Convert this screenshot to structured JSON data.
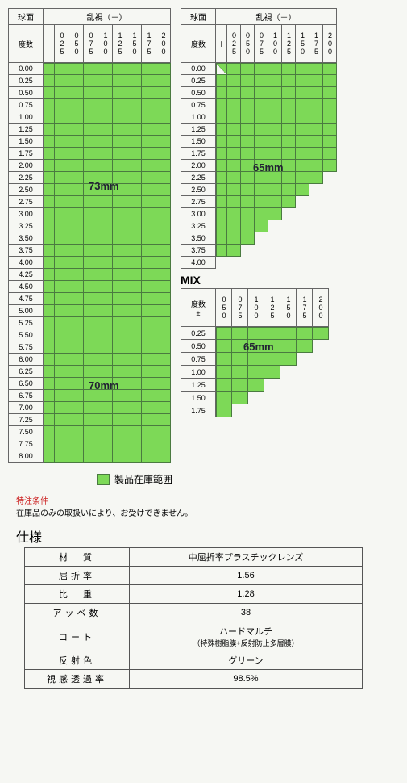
{
  "color": {
    "filled": "#7dd957",
    "grid_line": "#4a7a40",
    "border": "#666666",
    "bg": "#f6f7f3",
    "redline": "#d00000"
  },
  "cyl_headers": [
    "025",
    "050",
    "075",
    "100",
    "125",
    "150",
    "175",
    "200"
  ],
  "chart_minus": {
    "sphere_label": "球面",
    "cyl_label": "乱視（－）",
    "degree_label": "度数",
    "sign": "－",
    "rows": [
      "0.00",
      "0.25",
      "0.50",
      "0.75",
      "1.00",
      "1.25",
      "1.50",
      "1.75",
      "2.00",
      "2.25",
      "2.50",
      "2.75",
      "3.00",
      "3.25",
      "3.50",
      "3.75",
      "4.00",
      "4.25",
      "4.50",
      "4.75",
      "5.00",
      "5.25",
      "5.50",
      "5.75",
      "6.00",
      "6.25",
      "6.50",
      "6.75",
      "7.00",
      "7.25",
      "7.50",
      "7.75",
      "8.00"
    ],
    "big_label_1": "73mm",
    "big_label_2": "70mm",
    "redline_after_row": 25,
    "cols": 8,
    "fill": "all"
  },
  "chart_plus": {
    "sphere_label": "球面",
    "cyl_label": "乱視（＋）",
    "degree_label": "度数",
    "sign": "＋",
    "rows": [
      "0.00",
      "0.25",
      "0.50",
      "0.75",
      "1.00",
      "1.25",
      "1.50",
      "1.75",
      "2.00",
      "2.25",
      "2.50",
      "2.75",
      "3.00",
      "3.25",
      "3.50",
      "3.75",
      "4.00"
    ],
    "big_label": "65mm",
    "cols": 8,
    "fill_counts": [
      8,
      8,
      8,
      8,
      8,
      8,
      8,
      8,
      8,
      7,
      6,
      5,
      4,
      3,
      2,
      1,
      0
    ]
  },
  "chart_mix": {
    "title": "MIX",
    "degree_label": "度数\n±",
    "cyl_headers": [
      "050",
      "075",
      "100",
      "125",
      "150",
      "175",
      "200"
    ],
    "rows": [
      "0.25",
      "0.50",
      "0.75",
      "1.00",
      "1.25",
      "1.50",
      "1.75"
    ],
    "big_label": "65mm",
    "cols": 7,
    "fill_counts": [
      7,
      6,
      5,
      4,
      3,
      2,
      1
    ]
  },
  "legend": {
    "text": "製品在庫範囲"
  },
  "note": {
    "title": "特注条件",
    "body": "在庫品のみの取扱いにより、お受けできません。"
  },
  "spec": {
    "title": "仕様",
    "rows": [
      {
        "key": "材　質",
        "val": "中屈折率プラスチックレンズ"
      },
      {
        "key": "屈折率",
        "val": "1.56"
      },
      {
        "key": "比　重",
        "val": "1.28"
      },
      {
        "key": "アッベ数",
        "val": "38"
      },
      {
        "key": "コート",
        "val": "ハードマルチ",
        "sub": "（特殊樹脂膜+反射防止多層膜）"
      },
      {
        "key": "反射色",
        "val": "グリーン"
      },
      {
        "key": "視感透過率",
        "val": "98.5%"
      }
    ]
  }
}
